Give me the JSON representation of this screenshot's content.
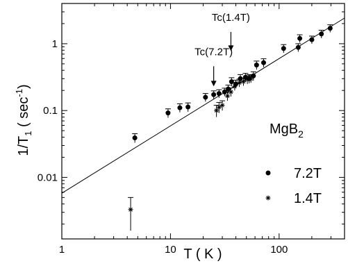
{
  "chart_data": {
    "type": "scatter",
    "xscale": "log",
    "yscale": "log",
    "xlim": [
      1,
      400
    ],
    "ylim": [
      0.0012,
      4
    ],
    "xlabel": "T ( K )",
    "ylabel": {
      "main": "1/T",
      "sub": "1",
      "rest": " ( sec",
      "sup": "-1",
      "end": ")"
    },
    "xticks": [
      {
        "value": 1,
        "label": "1"
      },
      {
        "value": 10,
        "label": "10"
      },
      {
        "value": 100,
        "label": "100"
      }
    ],
    "yticks": [
      {
        "value": 0.01,
        "label": "0.01"
      },
      {
        "value": 0.1,
        "label": "0.1"
      },
      {
        "value": 1,
        "label": "1"
      }
    ],
    "sample_label": {
      "main": "MgB",
      "sub": "2"
    },
    "series": [
      {
        "name": "7.2T",
        "marker": "dot",
        "points": [
          [
            4.7,
            0.039,
            0.006
          ],
          [
            9.5,
            0.092,
            0.014
          ],
          [
            12.2,
            0.11,
            0.016
          ],
          [
            14.5,
            0.113,
            0.017
          ],
          [
            21,
            0.158,
            0.022
          ],
          [
            25,
            0.173,
            0.024
          ],
          [
            28,
            0.18,
            0.025
          ],
          [
            31.5,
            0.19,
            0.026
          ],
          [
            34,
            0.21,
            0.03
          ],
          [
            36.5,
            0.27,
            0.04
          ],
          [
            40,
            0.25,
            0.035
          ],
          [
            44,
            0.3,
            0.045
          ],
          [
            49,
            0.315,
            0.045
          ],
          [
            53,
            0.3,
            0.045
          ],
          [
            58,
            0.33,
            0.05
          ],
          [
            62,
            0.48,
            0.07
          ],
          [
            72,
            0.52,
            0.075
          ],
          [
            110,
            0.85,
            0.12
          ],
          [
            150,
            0.88,
            0.12
          ],
          [
            155,
            1.2,
            0.16
          ],
          [
            200,
            1.15,
            0.15
          ],
          [
            245,
            1.4,
            0.19
          ],
          [
            295,
            1.7,
            0.22
          ]
        ]
      },
      {
        "name": "1.4T",
        "marker": "star",
        "points": [
          [
            4.3,
            0.0033,
            0.0017
          ],
          [
            26.5,
            0.1,
            0.02
          ],
          [
            28,
            0.112,
            0.02
          ],
          [
            30,
            0.12,
            0.02
          ],
          [
            33.5,
            0.165,
            0.025
          ],
          [
            36,
            0.19,
            0.028
          ],
          [
            39,
            0.23,
            0.03
          ],
          [
            43,
            0.26,
            0.035
          ],
          [
            47,
            0.27,
            0.035
          ],
          [
            51,
            0.29,
            0.04
          ],
          [
            55,
            0.3,
            0.04
          ]
        ]
      }
    ],
    "fit_line": {
      "x": [
        1,
        400
      ],
      "y": [
        0.0058,
        2.42
      ]
    },
    "annotations": [
      {
        "text": "Tc(7.2T)",
        "x": 25,
        "y_text": 0.67,
        "y_arrow_top": 0.46,
        "y_arrow_bottom": 0.23
      },
      {
        "text": "Tc(1.4T)",
        "x": 36,
        "y_text": 2.2,
        "y_arrow_top": 1.5,
        "y_arrow_bottom": 0.78
      }
    ],
    "legend": {
      "position": "bottom-right"
    },
    "grid": false
  }
}
